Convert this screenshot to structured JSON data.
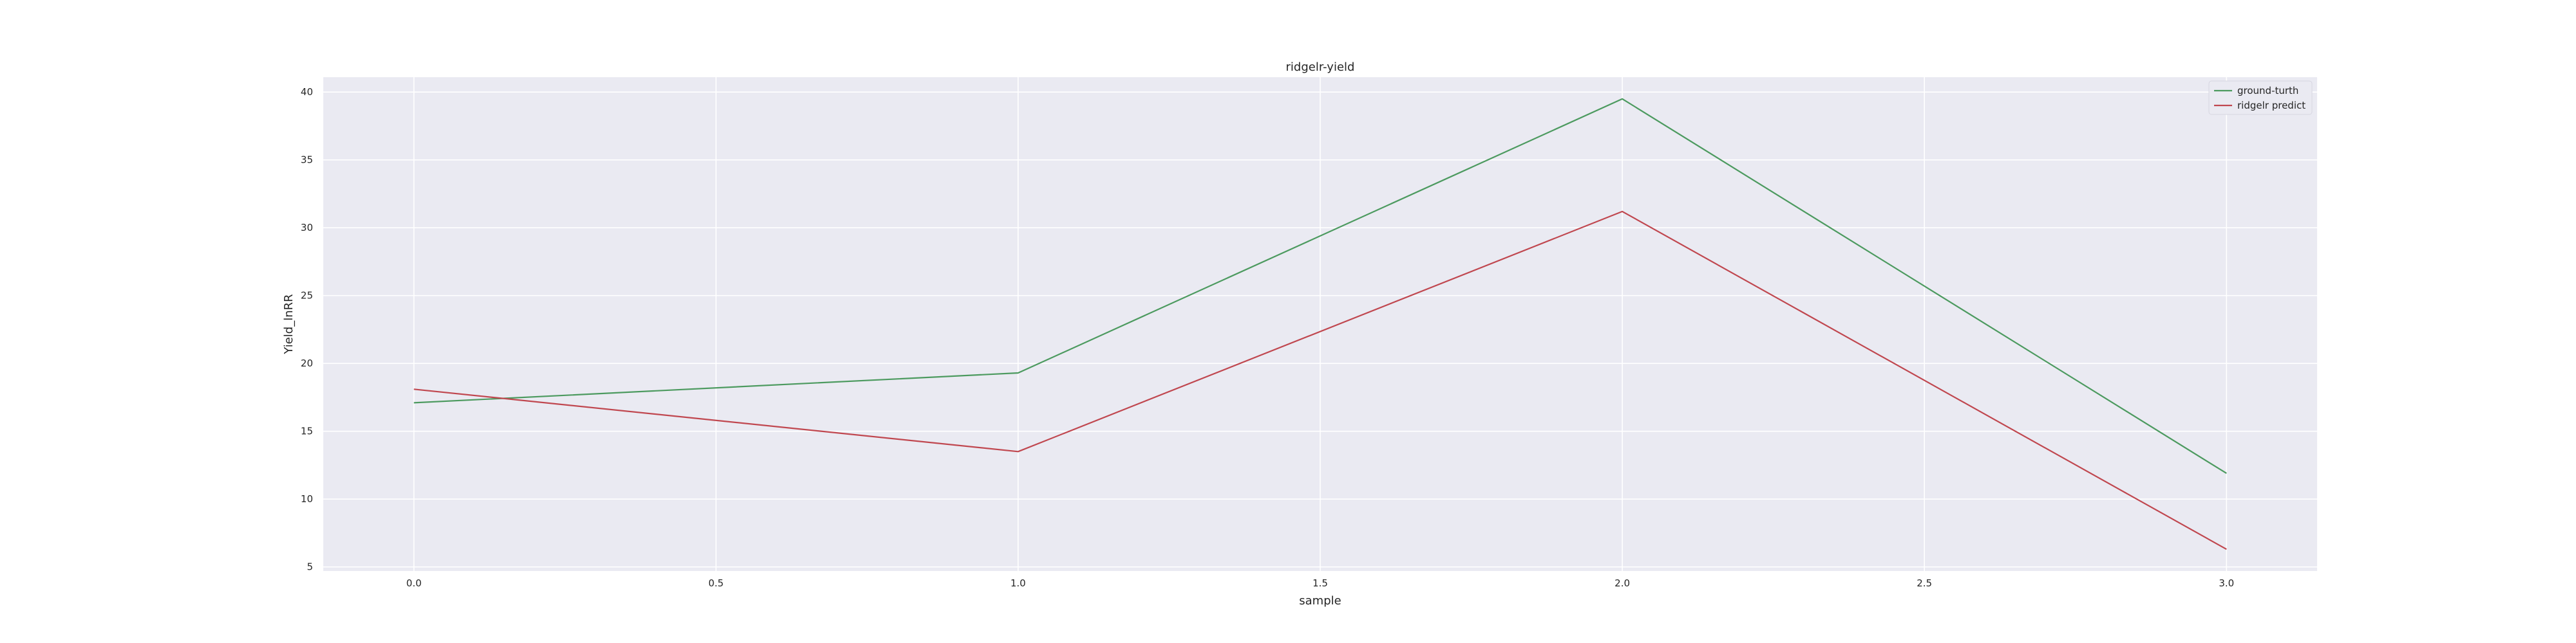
{
  "chart_data": {
    "type": "line",
    "title": "ridgelr-yield",
    "xlabel": "sample",
    "ylabel": "Yield_lnRR",
    "x": [
      0,
      1,
      2,
      3
    ],
    "xlim": [
      -0.15,
      3.15
    ],
    "ylim": [
      4.7,
      41.1
    ],
    "xticks": [
      0.0,
      0.5,
      1.0,
      1.5,
      2.0,
      2.5,
      3.0
    ],
    "xtick_labels": [
      "0.0",
      "0.5",
      "1.0",
      "1.5",
      "2.0",
      "2.5",
      "3.0"
    ],
    "yticks": [
      5,
      10,
      15,
      20,
      25,
      30,
      35,
      40
    ],
    "ytick_labels": [
      "5",
      "10",
      "15",
      "20",
      "25",
      "30",
      "35",
      "40"
    ],
    "grid": true,
    "legend_position": "top-right",
    "series": [
      {
        "name": "ground-turth",
        "color": "#4c9a5f",
        "values": [
          17.1,
          19.3,
          39.5,
          11.9
        ]
      },
      {
        "name": "ridgelr predict",
        "color": "#c0474f",
        "values": [
          18.1,
          13.5,
          31.2,
          6.3
        ]
      }
    ],
    "colors": {
      "plot_background": "#eaeaf2",
      "grid": "#ffffff",
      "text": "#262626"
    }
  }
}
